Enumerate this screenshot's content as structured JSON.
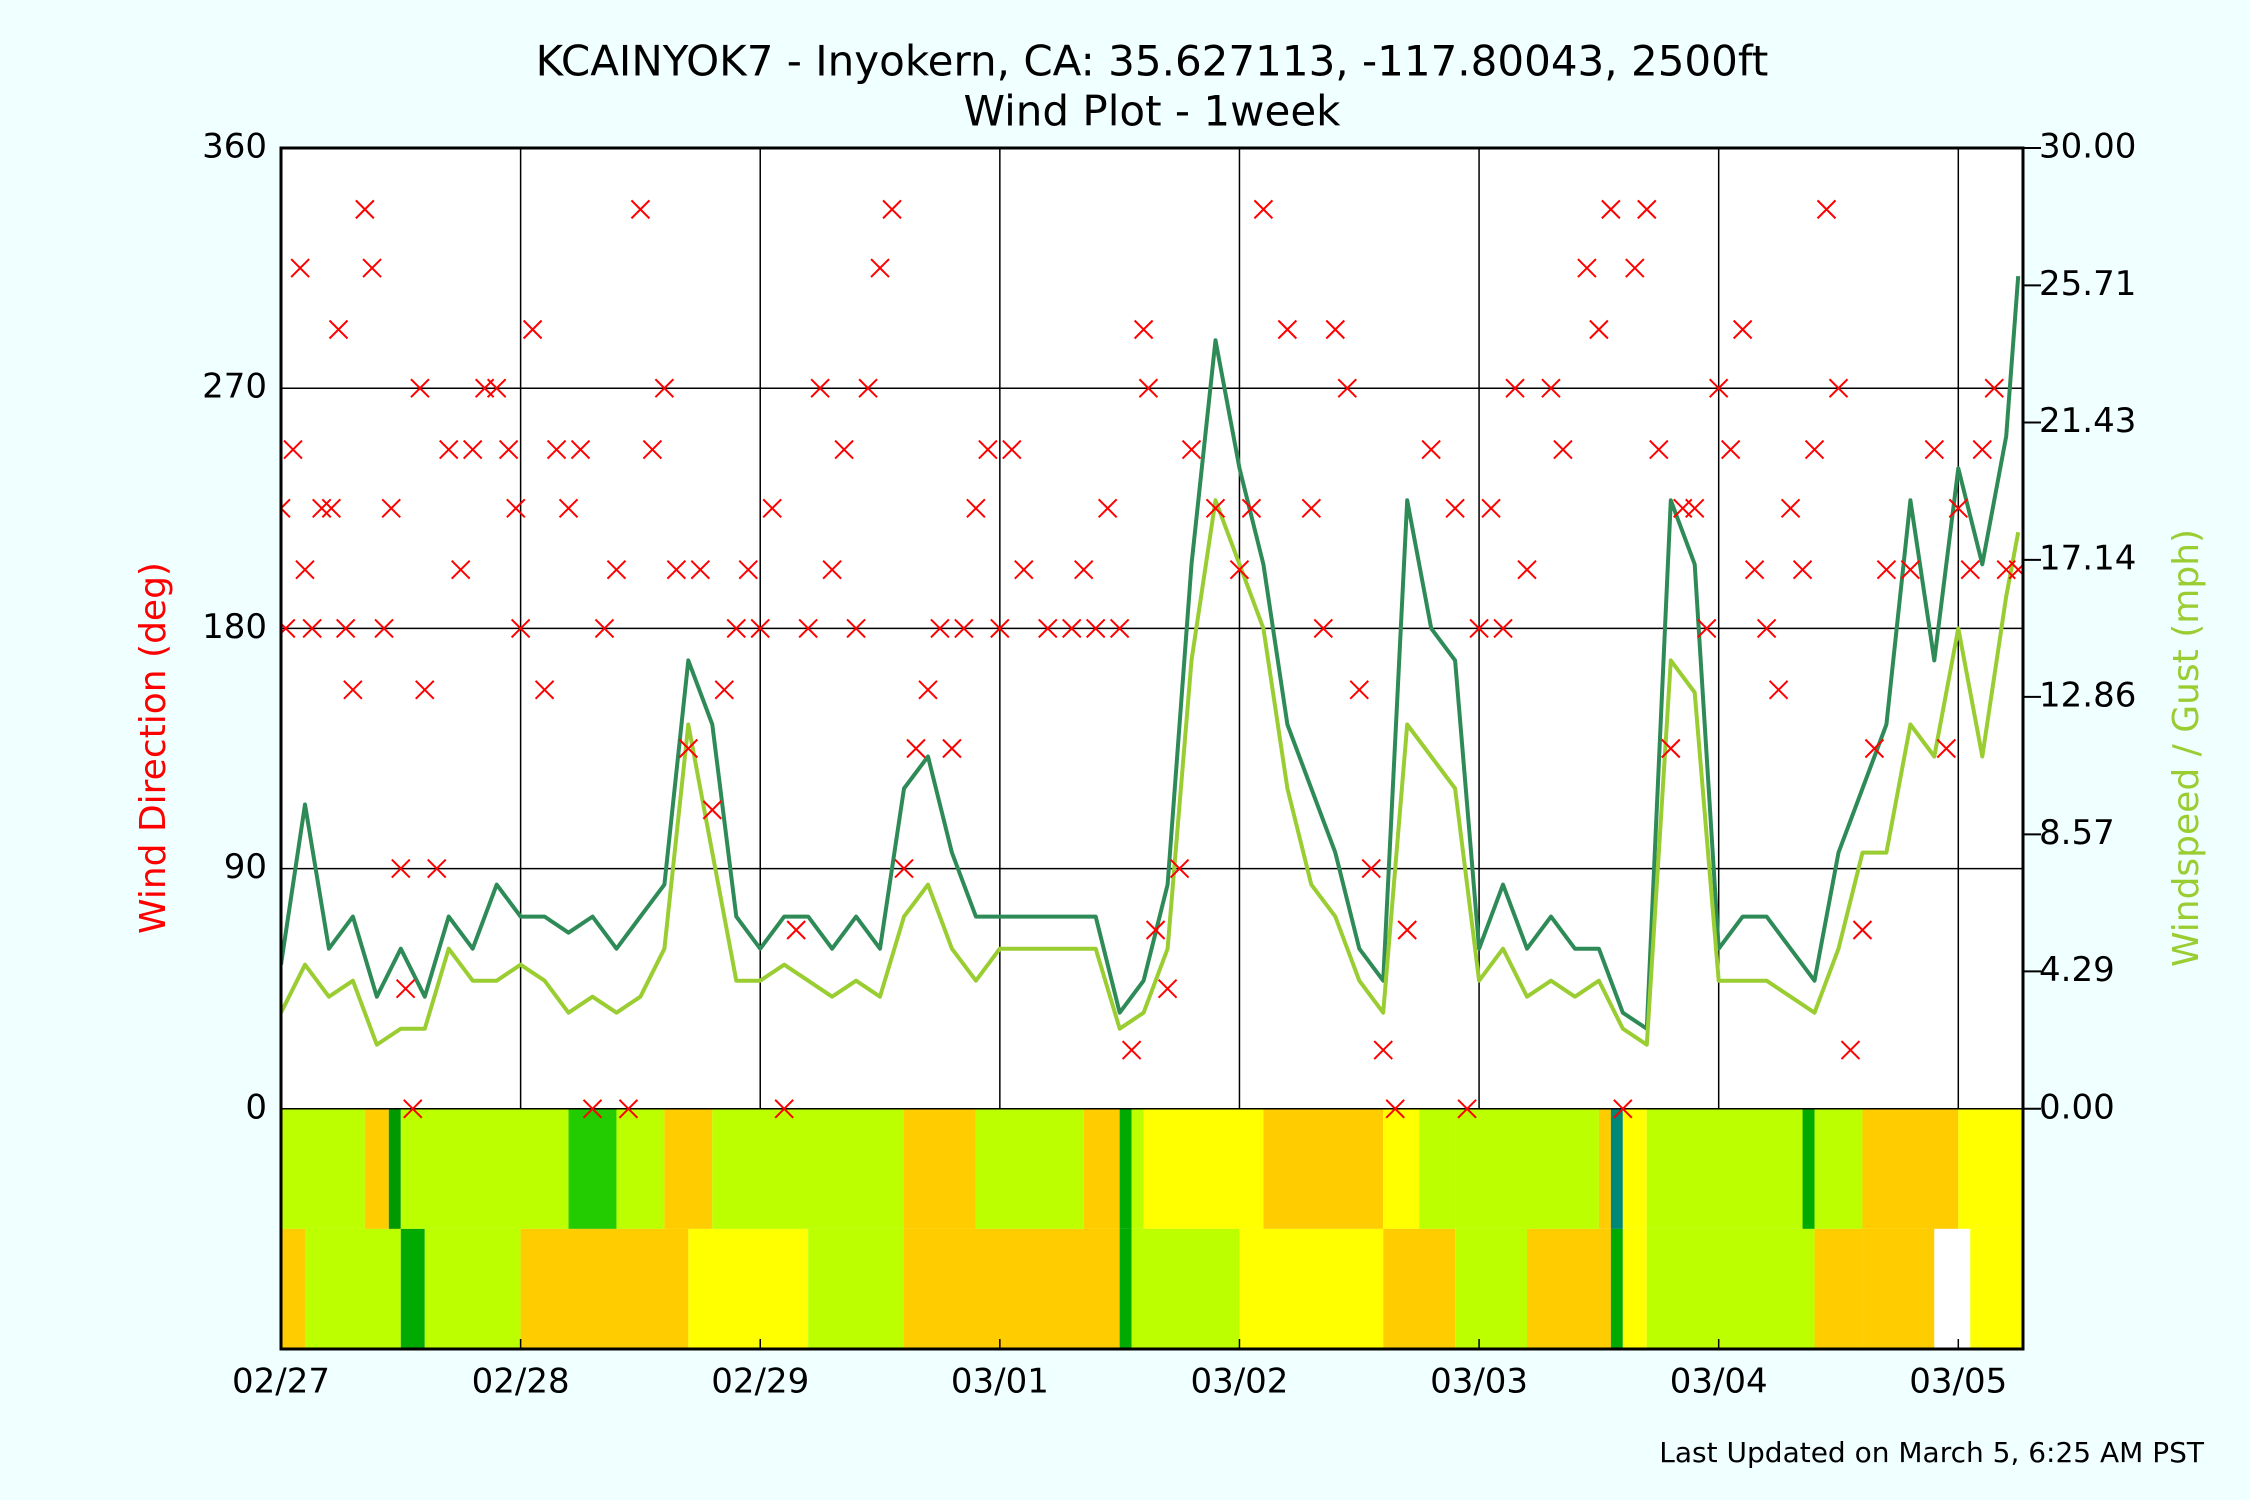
{
  "chart_data": {
    "type": "line",
    "title": "KCAINYOK7 - Inyokern, CA: 35.627113, -117.80043, 2500ft",
    "subtitle": "Wind Plot - 1week",
    "ylabel": "Wind Direction (deg)",
    "y2label": "Windspeed / Gust (mph)",
    "footnote": "Last Updated on March 5, 6:25 AM PST",
    "grid": true,
    "xlim": [
      0,
      7.27
    ],
    "xticks": [
      {
        "value": 0,
        "label": "02/27"
      },
      {
        "value": 1,
        "label": "02/28"
      },
      {
        "value": 2,
        "label": "02/29"
      },
      {
        "value": 3,
        "label": "03/01"
      },
      {
        "value": 4,
        "label": "03/02"
      },
      {
        "value": 5,
        "label": "03/03"
      },
      {
        "value": 6,
        "label": "03/04"
      },
      {
        "value": 7,
        "label": "03/05"
      }
    ],
    "ylim": [
      -90,
      360
    ],
    "yticks": [
      0,
      90,
      180,
      270,
      360
    ],
    "y2lim": [
      -7.5,
      30
    ],
    "y2ticks": [
      {
        "value": 0,
        "label": "0.00"
      },
      4.29,
      8.57,
      12.86,
      17.14,
      21.43,
      25.71,
      {
        "value": 30,
        "label": "30.00"
      }
    ],
    "x": [
      0,
      0.1,
      0.2,
      0.3,
      0.4,
      0.5,
      0.6,
      0.7,
      0.8,
      0.9,
      1.0,
      1.1,
      1.2,
      1.3,
      1.4,
      1.5,
      1.6,
      1.7,
      1.8,
      1.9,
      2.0,
      2.1,
      2.2,
      2.3,
      2.4,
      2.5,
      2.6,
      2.7,
      2.8,
      2.9,
      3.0,
      3.1,
      3.2,
      3.3,
      3.4,
      3.5,
      3.6,
      3.7,
      3.8,
      3.9,
      4.0,
      4.1,
      4.2,
      4.3,
      4.4,
      4.5,
      4.6,
      4.7,
      4.8,
      4.9,
      5.0,
      5.1,
      5.2,
      5.3,
      5.4,
      5.5,
      5.6,
      5.7,
      5.8,
      5.9,
      6.0,
      6.1,
      6.2,
      6.3,
      6.4,
      6.5,
      6.6,
      6.7,
      6.8,
      6.9,
      7.0,
      7.1,
      7.2,
      7.25
    ],
    "series": [
      {
        "color": "#2e8b57",
        "axis": "y2",
        "values": [
          4.5,
          9.5,
          5,
          6,
          3.5,
          5,
          3.5,
          6,
          5,
          7,
          6,
          6,
          5.5,
          6,
          5,
          6,
          7,
          14,
          12,
          6,
          5,
          6,
          6,
          5,
          6,
          5,
          10,
          11,
          8,
          6,
          6,
          6,
          6,
          6,
          6,
          3,
          4,
          7,
          17,
          24,
          20,
          17,
          12,
          10,
          8,
          5,
          4,
          19,
          15,
          14,
          5,
          7,
          5,
          6,
          5,
          5,
          3,
          2.5,
          19,
          17,
          5,
          6,
          6,
          5,
          4,
          8,
          10,
          12,
          19,
          14,
          20,
          17,
          21,
          26
        ]
      },
      {
        "color": "#9acd32",
        "axis": "y2",
        "values": [
          3,
          4.5,
          3.5,
          4,
          2,
          2.5,
          2.5,
          5,
          4,
          4,
          4.5,
          4,
          3,
          3.5,
          3,
          3.5,
          5,
          12,
          8,
          4,
          4,
          4.5,
          4,
          3.5,
          4,
          3.5,
          6,
          7,
          5,
          4,
          5,
          5,
          5,
          5,
          5,
          2.5,
          3,
          5,
          14,
          19,
          17,
          15,
          10,
          7,
          6,
          4,
          3,
          12,
          11,
          10,
          4,
          5,
          3.5,
          4,
          3.5,
          4,
          2.5,
          2,
          14,
          13,
          4,
          4,
          4,
          3.5,
          3,
          5,
          8,
          8,
          12,
          11,
          15,
          11,
          16,
          18
        ]
      }
    ],
    "direction": {
      "color": "#ff0000",
      "x": [
        0.0,
        0.02,
        0.05,
        0.08,
        0.1,
        0.13,
        0.17,
        0.21,
        0.24,
        0.27,
        0.3,
        0.35,
        0.38,
        0.43,
        0.46,
        0.5,
        0.52,
        0.55,
        0.58,
        0.6,
        0.65,
        0.7,
        0.75,
        0.8,
        0.85,
        0.9,
        0.95,
        0.98,
        1.0,
        1.05,
        1.1,
        1.15,
        1.2,
        1.25,
        1.3,
        1.35,
        1.4,
        1.45,
        1.5,
        1.55,
        1.6,
        1.65,
        1.7,
        1.75,
        1.8,
        1.85,
        1.9,
        1.95,
        2.0,
        2.05,
        2.1,
        2.15,
        2.2,
        2.25,
        2.3,
        2.35,
        2.4,
        2.45,
        2.5,
        2.55,
        2.6,
        2.65,
        2.7,
        2.75,
        2.8,
        2.85,
        2.9,
        2.95,
        3.0,
        3.05,
        3.1,
        3.2,
        3.3,
        3.35,
        3.4,
        3.45,
        3.5,
        3.55,
        3.6,
        3.62,
        3.65,
        3.7,
        3.75,
        3.8,
        3.9,
        4.0,
        4.05,
        4.1,
        4.2,
        4.3,
        4.35,
        4.4,
        4.45,
        4.5,
        4.55,
        4.6,
        4.65,
        4.7,
        4.8,
        4.9,
        4.95,
        5.0,
        5.05,
        5.1,
        5.15,
        5.2,
        5.3,
        5.35,
        5.45,
        5.5,
        5.55,
        5.6,
        5.65,
        5.7,
        5.75,
        5.8,
        5.85,
        5.9,
        5.95,
        6.0,
        6.05,
        6.1,
        6.15,
        6.2,
        6.25,
        6.3,
        6.35,
        6.4,
        6.45,
        6.5,
        6.55,
        6.6,
        6.65,
        6.7,
        6.8,
        6.9,
        6.95,
        7.0,
        7.05,
        7.1,
        7.15,
        7.2,
        7.25
      ],
      "values": [
        225,
        180,
        247,
        315,
        202,
        180,
        225,
        225,
        292,
        180,
        157,
        337,
        315,
        180,
        225,
        90,
        45,
        0,
        270,
        157,
        90,
        247,
        202,
        247,
        270,
        270,
        247,
        225,
        180,
        292,
        157,
        247,
        225,
        247,
        0,
        180,
        202,
        0,
        337,
        247,
        270,
        202,
        135,
        202,
        112,
        157,
        180,
        202,
        180,
        225,
        0,
        67,
        180,
        270,
        202,
        247,
        180,
        270,
        315,
        337,
        90,
        135,
        157,
        180,
        135,
        180,
        225,
        247,
        180,
        247,
        202,
        180,
        180,
        202,
        180,
        225,
        180,
        22,
        292,
        270,
        67,
        45,
        90,
        247,
        225,
        202,
        225,
        337,
        292,
        225,
        180,
        292,
        270,
        157,
        90,
        22,
        0,
        67,
        247,
        225,
        0,
        180,
        225,
        180,
        270,
        202,
        270,
        247,
        315,
        292,
        337,
        0,
        315,
        337,
        247,
        135,
        225,
        225,
        180,
        270,
        247,
        292,
        202,
        180,
        157,
        225,
        202,
        247,
        337,
        270,
        22,
        67,
        135,
        202,
        202,
        247,
        135,
        225,
        202,
        247,
        270,
        202,
        202
      ]
    },
    "color_band": [
      {
        "x": [
          0,
          0.35,
          0.45,
          0.5,
          1.2,
          1.4,
          1.6,
          1.8,
          2.6,
          2.9,
          3.35,
          3.5,
          3.55,
          3.6,
          4.1,
          4.6,
          4.75,
          4.9,
          5.5,
          5.55,
          5.6,
          5.7,
          6.35,
          6.4,
          6.6,
          7.0,
          7.27
        ],
        "colors": [
          "#bbff00",
          "#ffcc00",
          "#009900",
          "#bbff00",
          "#22cc00",
          "#bbff00",
          "#ffcc00",
          "#bbff00",
          "#ffcc00",
          "#bbff00",
          "#ffcc00",
          "#00aa00",
          "#bbff00",
          "#ffff00",
          "#ffcc00",
          "#ffff00",
          "#bbff00",
          "#bbff00",
          "#ffcc00",
          "#008877",
          "#ffff00",
          "#bbff00",
          "#00aa00",
          "#bbff00",
          "#ffcc00",
          "#ffff00"
        ]
      },
      {
        "x": [
          0,
          0.1,
          0.5,
          0.6,
          1.0,
          1.7,
          2.2,
          2.6,
          3.5,
          3.55,
          4.0,
          4.6,
          4.9,
          5.2,
          5.55,
          5.6,
          5.7,
          6.4,
          6.6,
          6.9,
          7.05,
          7.27
        ],
        "colors": [
          "#ffcc00",
          "#bbff00",
          "#00aa00",
          "#bbff00",
          "#ffcc00",
          "#ffff00",
          "#bbff00",
          "#ffcc00",
          "#00aa00",
          "#bbff00",
          "#ffff00",
          "#ffcc00",
          "#bbff00",
          "#ffcc00",
          "#00aa00",
          "#ffff00",
          "#bbff00",
          "#ffcc00",
          "#ffcc00",
          "#ffffff",
          "#ffff00"
        ]
      }
    ]
  }
}
